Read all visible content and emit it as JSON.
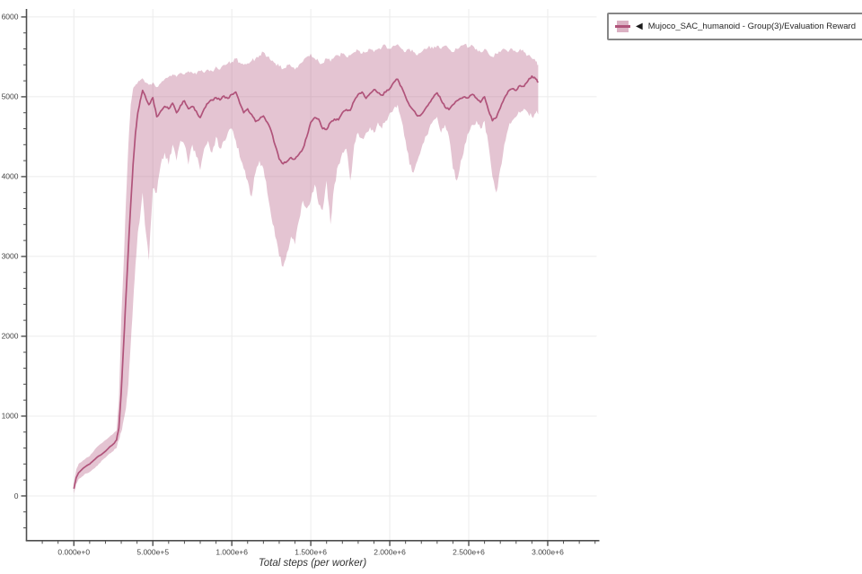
{
  "window": {
    "background": "#ffffff"
  },
  "legend": {
    "marker": "◀",
    "swatch_fill": "rgba(176,83,122,0.45)"
  },
  "chart_data": {
    "type": "line",
    "title": "",
    "xlabel": "Total steps (per worker)",
    "ylabel": "",
    "grid": true,
    "legend_position": "outside-top-right",
    "xlim": [
      -300000,
      3310000
    ],
    "ylim": [
      -560,
      6100
    ],
    "x_minor_step": 100000,
    "y_minor_step": 200,
    "x_ticks": [
      {
        "v": 0,
        "label": "0.000e+0"
      },
      {
        "v": 500000,
        "label": "5.000e+5"
      },
      {
        "v": 1000000,
        "label": "1.000e+6"
      },
      {
        "v": 1500000,
        "label": "1.500e+6"
      },
      {
        "v": 2000000,
        "label": "2.000e+6"
      },
      {
        "v": 2500000,
        "label": "2.500e+6"
      },
      {
        "v": 3000000,
        "label": "3.000e+6"
      }
    ],
    "y_ticks": [
      {
        "v": 0,
        "label": "0"
      },
      {
        "v": 1000,
        "label": "1000"
      },
      {
        "v": 2000,
        "label": "2000"
      },
      {
        "v": 3000,
        "label": "3000"
      },
      {
        "v": 4000,
        "label": "4000"
      },
      {
        "v": 5000,
        "label": "5000"
      },
      {
        "v": 6000,
        "label": "6000"
      }
    ],
    "axis_color": "#4d4d4d",
    "grid_color": "#ececec",
    "tick_label_color": "#454545",
    "series": [
      {
        "name": "Mujoco_SAC_humanoid - Group(3)/Evaluation Reward",
        "color": "#b0537a",
        "band_color": "rgba(176,83,122,0.34)",
        "x": [
          0,
          15000,
          30000,
          50000,
          75000,
          100000,
          125000,
          150000,
          175000,
          200000,
          225000,
          250000,
          270000,
          285000,
          300000,
          315000,
          330000,
          345000,
          360000,
          375000,
          390000,
          405000,
          420000,
          435000,
          450000,
          475000,
          500000,
          525000,
          550000,
          575000,
          600000,
          625000,
          650000,
          675000,
          700000,
          725000,
          750000,
          775000,
          800000,
          825000,
          850000,
          875000,
          900000,
          925000,
          950000,
          975000,
          1000000,
          1025000,
          1050000,
          1075000,
          1100000,
          1125000,
          1150000,
          1175000,
          1200000,
          1225000,
          1250000,
          1275000,
          1300000,
          1325000,
          1350000,
          1375000,
          1400000,
          1425000,
          1450000,
          1475000,
          1500000,
          1525000,
          1550000,
          1575000,
          1600000,
          1625000,
          1650000,
          1675000,
          1700000,
          1725000,
          1750000,
          1775000,
          1800000,
          1825000,
          1850000,
          1875000,
          1900000,
          1925000,
          1950000,
          1975000,
          2000000,
          2025000,
          2050000,
          2075000,
          2100000,
          2125000,
          2150000,
          2175000,
          2200000,
          2225000,
          2250000,
          2275000,
          2300000,
          2325000,
          2350000,
          2375000,
          2400000,
          2425000,
          2450000,
          2475000,
          2500000,
          2525000,
          2550000,
          2575000,
          2600000,
          2625000,
          2650000,
          2675000,
          2700000,
          2725000,
          2750000,
          2775000,
          2800000,
          2825000,
          2850000,
          2875000,
          2900000,
          2925000,
          2940000
        ],
        "mean": [
          90,
          230,
          290,
          330,
          370,
          400,
          445,
          490,
          520,
          560,
          610,
          650,
          700,
          850,
          1300,
          1900,
          2500,
          3100,
          3650,
          4150,
          4550,
          4800,
          4950,
          5080,
          5020,
          4900,
          4990,
          4750,
          4820,
          4880,
          4850,
          4920,
          4800,
          4890,
          4950,
          4850,
          4880,
          4820,
          4740,
          4850,
          4920,
          4960,
          4990,
          4960,
          5010,
          4980,
          5030,
          5060,
          4920,
          4800,
          4850,
          4780,
          4690,
          4720,
          4760,
          4680,
          4570,
          4390,
          4220,
          4160,
          4190,
          4240,
          4220,
          4280,
          4350,
          4500,
          4680,
          4740,
          4720,
          4600,
          4590,
          4680,
          4720,
          4710,
          4800,
          4840,
          4830,
          4950,
          5030,
          5060,
          4980,
          5040,
          5090,
          5050,
          5020,
          5060,
          5100,
          5180,
          5220,
          5120,
          5000,
          4890,
          4830,
          4760,
          4780,
          4850,
          4920,
          4990,
          5050,
          4960,
          4870,
          4840,
          4900,
          4950,
          4980,
          5000,
          4990,
          5030,
          4980,
          4930,
          5000,
          4830,
          4700,
          4740,
          4860,
          4980,
          5070,
          5100,
          5080,
          5140,
          5130,
          5200,
          5260,
          5220,
          5180
        ],
        "lower": [
          30,
          150,
          210,
          240,
          280,
          300,
          340,
          380,
          440,
          480,
          530,
          560,
          600,
          700,
          800,
          950,
          1100,
          1400,
          1900,
          2400,
          2900,
          3300,
          3500,
          3800,
          3400,
          2950,
          3850,
          3800,
          4150,
          4300,
          4150,
          4400,
          4200,
          4450,
          4400,
          4150,
          4400,
          4250,
          4080,
          4350,
          4450,
          4300,
          4500,
          4350,
          4450,
          4550,
          4600,
          4450,
          4250,
          4100,
          3950,
          3750,
          4050,
          4200,
          4100,
          3800,
          3500,
          3250,
          3000,
          2870,
          3050,
          3250,
          3150,
          3450,
          3700,
          3600,
          3700,
          3900,
          3650,
          3580,
          3950,
          3400,
          3900,
          4150,
          4300,
          4350,
          3950,
          4400,
          4550,
          4480,
          4550,
          4620,
          4550,
          4680,
          4600,
          4700,
          4800,
          4850,
          4900,
          4700,
          4450,
          4150,
          4050,
          4200,
          4350,
          4500,
          4600,
          4700,
          4750,
          4550,
          4650,
          4500,
          4100,
          3950,
          4200,
          4400,
          4550,
          4650,
          4700,
          4600,
          4700,
          4400,
          4000,
          3800,
          4100,
          4400,
          4600,
          4700,
          4750,
          4800,
          4850,
          4800,
          4750,
          4800,
          4780
        ],
        "upper": [
          160,
          330,
          400,
          430,
          470,
          500,
          560,
          620,
          660,
          700,
          740,
          780,
          820,
          1200,
          2200,
          2900,
          3700,
          4400,
          4900,
          5100,
          5150,
          5180,
          5210,
          5230,
          5180,
          5150,
          5180,
          5120,
          5170,
          5220,
          5250,
          5280,
          5250,
          5300,
          5280,
          5320,
          5300,
          5280,
          5320,
          5300,
          5340,
          5320,
          5380,
          5340,
          5400,
          5420,
          5440,
          5480,
          5430,
          5400,
          5420,
          5450,
          5480,
          5520,
          5560,
          5500,
          5450,
          5420,
          5380,
          5350,
          5400,
          5380,
          5340,
          5400,
          5440,
          5500,
          5540,
          5480,
          5440,
          5420,
          5480,
          5440,
          5500,
          5520,
          5540,
          5500,
          5520,
          5560,
          5580,
          5540,
          5560,
          5600,
          5560,
          5600,
          5620,
          5640,
          5600,
          5640,
          5660,
          5600,
          5560,
          5600,
          5560,
          5520,
          5560,
          5600,
          5640,
          5600,
          5640,
          5600,
          5640,
          5600,
          5560,
          5600,
          5640,
          5660,
          5620,
          5640,
          5600,
          5560,
          5600,
          5540,
          5500,
          5540,
          5560,
          5600,
          5560,
          5600,
          5560,
          5600,
          5560,
          5520,
          5480,
          5440,
          5400
        ]
      }
    ]
  }
}
